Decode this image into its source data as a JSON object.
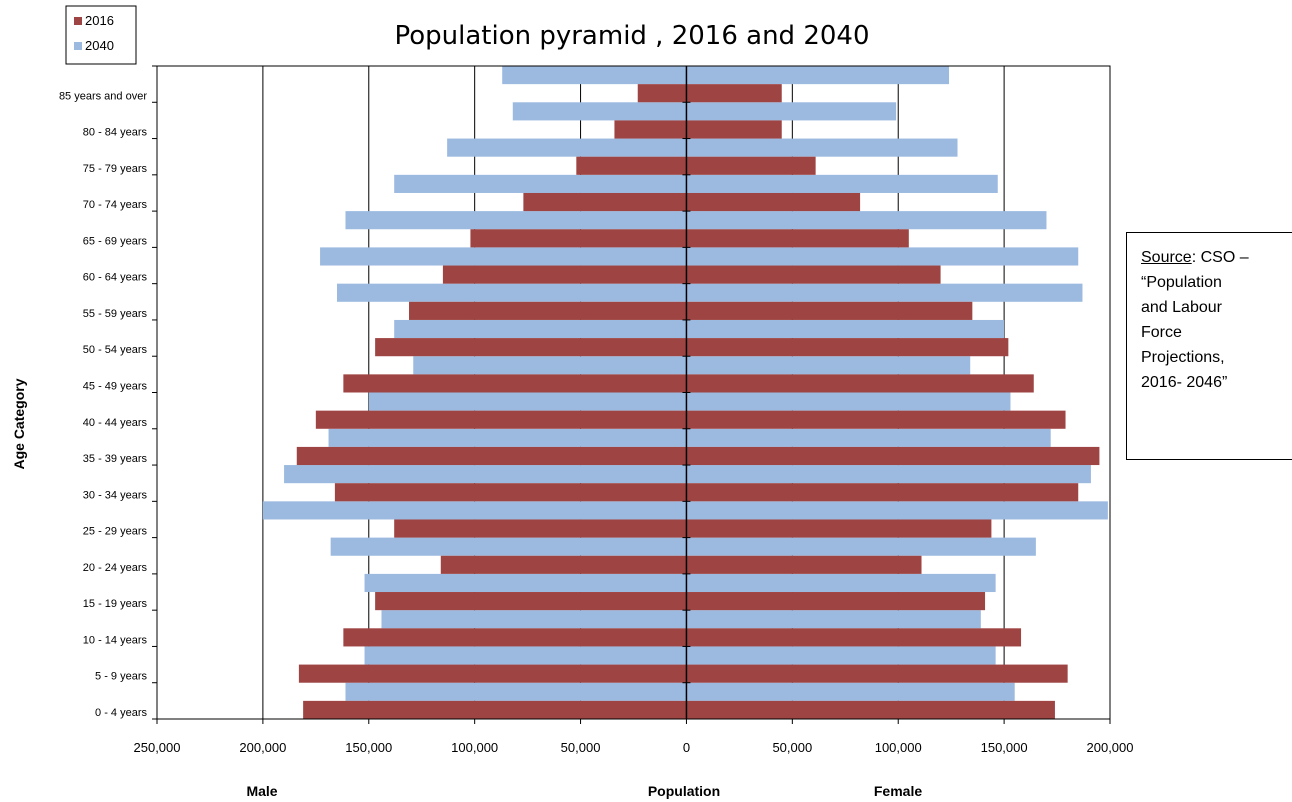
{
  "chart_data": {
    "type": "bar",
    "orientation": "horizontal-pyramid",
    "title": "Population pyramid , 2016 and 2040",
    "ylabel": "Age Category",
    "xlabels": {
      "left": "Male",
      "center": "Population",
      "right": "Female"
    },
    "xlim": [
      -250000,
      200000
    ],
    "xticks": [
      -250000,
      -200000,
      -150000,
      -100000,
      -50000,
      0,
      50000,
      100000,
      150000,
      200000
    ],
    "xtick_labels": [
      "250,000",
      "200,000",
      "150,000",
      "100,000",
      "50,000",
      "0",
      "50,000",
      "100,000",
      "150,000",
      "200,000"
    ],
    "grid": "vertical",
    "legend_position": "top-left",
    "categories": [
      "0 - 4 years",
      "5 - 9 years",
      "10 - 14 years",
      "15 - 19 years",
      "20 - 24 years",
      "25 - 29 years",
      "30 - 34 years",
      "35 - 39 years",
      "40 - 44 years",
      "45 - 49 years",
      "50 - 54 years",
      "55 - 59 years",
      "60 - 64 years",
      "65 - 69 years",
      "70 - 74 years",
      "75 - 79 years",
      "80 - 84 years",
      "85 years and over"
    ],
    "series": [
      {
        "name": "2016",
        "color": "#9e4443",
        "male": [
          181000,
          183000,
          162000,
          147000,
          116000,
          138000,
          166000,
          184000,
          175000,
          162000,
          147000,
          131000,
          115000,
          102000,
          77000,
          52000,
          34000,
          23000
        ],
        "female": [
          174000,
          180000,
          158000,
          141000,
          111000,
          144000,
          185000,
          195000,
          179000,
          164000,
          152000,
          135000,
          120000,
          105000,
          82000,
          61000,
          45000,
          45000
        ]
      },
      {
        "name": "2040",
        "color": "#9cbae0",
        "male": [
          161000,
          152000,
          144000,
          152000,
          168000,
          200000,
          190000,
          169000,
          150000,
          129000,
          138000,
          165000,
          173000,
          161000,
          138000,
          113000,
          82000,
          87000
        ],
        "female": [
          155000,
          146000,
          139000,
          146000,
          165000,
          199000,
          191000,
          172000,
          153000,
          134000,
          150000,
          187000,
          185000,
          170000,
          147000,
          128000,
          99000,
          124000
        ]
      }
    ]
  },
  "source_note": {
    "label": "Source",
    "lines": [
      ": CSO –",
      "“Population",
      "and Labour",
      "Force",
      "Projections,",
      "2016- 2046”"
    ]
  }
}
